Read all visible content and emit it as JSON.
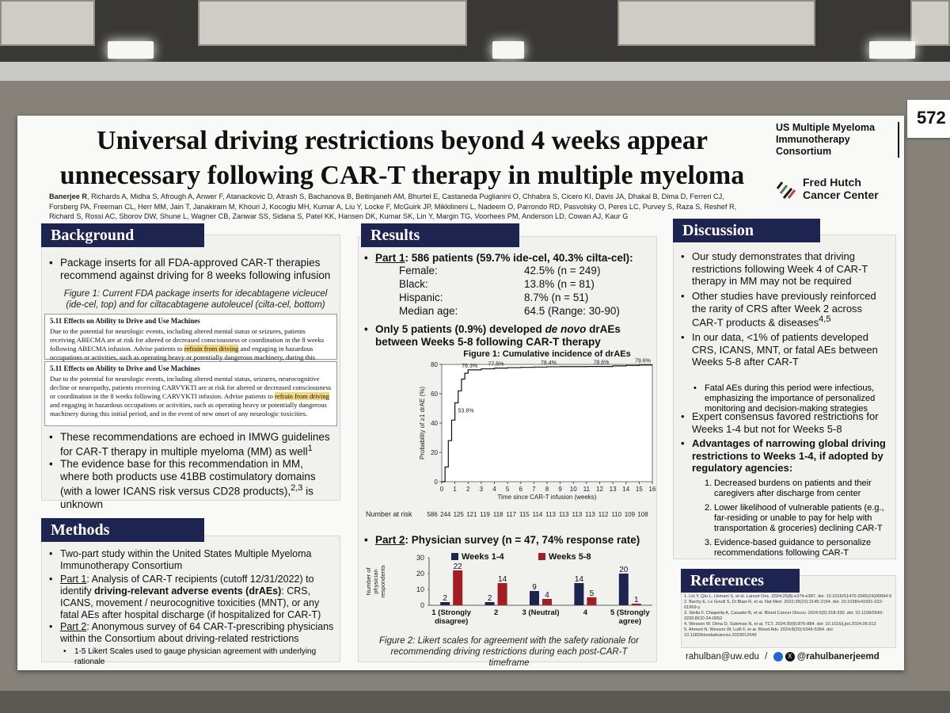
{
  "booth_number": "572",
  "title_line1": "Universal driving restrictions beyond 4 weeks appear",
  "title_line2": "unnecessary following CAR-T therapy in multiple myeloma",
  "authors_first": "Banerjee R",
  "authors_rest": ", Richards A, Midha S, Afrough A, Anwer F, Atanackovic D, Atrash S, Bachanova B, Beitinjaneh AM, Bhurtel E, Castaneda Puglianini O, Chhabra S, Cicero KI, Davis JA, Dhakal B, Dima D, Ferreri CJ, Forsberg PA, Freeman CL, Herr MM, Jain T, Janakiram M, Khouri J, Kocoglu MH, Kumar A, Liu Y, Locke F, McGuirk JP, Mikkilineni L, Nadeem O, Parrondo RD, Pasvolsky O, Peres LC, Purvey S, Raza S, Reshef R, Richard S, Rossi AC, Sborov DW, Shune L, Wagner CB, Zanwar SS, Sidana S, Patel KK, Hansen DK, Kumar SK, Lin Y, Margin TG, Voorhees PM, Anderson LD, Cowan AJ, Kaur G",
  "logos": {
    "consortium": [
      "US Multiple Myeloma",
      "Immunotherapy",
      "Consortium"
    ],
    "fred_hutch": [
      "Fred Hutch",
      "Cancer Center"
    ]
  },
  "background": {
    "header": "Background",
    "b1": "Package inserts for all FDA-approved CAR-T therapies recommend against driving for 8 weeks following infusion",
    "fig_caption": "Figure 1: Current FDA package inserts for idecabtagene vicleucel (ide-cel, top) and for ciltacabtagene autoleucel (cilta-cel, bottom)",
    "pkg1_heading": "5.11        Effects on Ability to Drive and Use Machines",
    "pkg1_text_a": "Due to the potential for neurologic events, including altered mental status or seizures, patients receiving ABECMA are at risk for altered or decreased consciousness or coordination in the 8 weeks following ABECMA infusion. Advise patients to ",
    "pkg1_highlight": "refrain from driving",
    "pkg1_text_b": " and engaging in hazardous occupations or activities, such as operating heavy or potentially dangerous machinery, during this initial period.",
    "pkg2_heading": "5.11  Effects on Ability to Drive and Use Machines",
    "pkg2_text_a": "Due to the potential for neurologic events, including altered mental status, seizures, neurocognitive decline or neuropathy, patients receiving CARVYKTI are at risk for altered or decreased consciousness or coordination in the 8 weeks following CARVYKTI infusion. Advise patients to ",
    "pkg2_highlight": "refrain from driving",
    "pkg2_text_b": " and engaging in hazardous occupations or activities, such as operating heavy or potentially dangerous machinery during this initial period, and in the event of new onset of any neurologic toxicities.",
    "b2": "These recommendations are echoed in IMWG guidelines for CAR-T therapy in multiple myeloma (MM) as well",
    "b2_sup": "1",
    "b3": "The evidence base for this recommendation in MM, where both products use 41BB costimulatory domains (with a lower ICANS risk versus CD28 products),",
    "b3_sup": "2,3",
    "b3_end": " is unknown"
  },
  "methods": {
    "header": "Methods",
    "b1": "Two-part study within the United States Multiple Myeloma Immunotherapy Consortium",
    "b2_label": "Part 1",
    "b2_text": ": Analysis of CAR-T recipients (cutoff 12/31/2022) to identify ",
    "b2_bold": "driving-relevant adverse events (drAEs)",
    "b2_end": ": CRS, ICANS, movement / neurocognitive toxicities (MNT), or any fatal AEs after hospital discharge (if hospitalized for CAR-T)",
    "b3_label": "Part 2",
    "b3_text": ": Anonymous survey of 64 CAR-T-prescribing physicians within the Consortium about driving-related restrictions",
    "b3_sub": "1-5 Likert Scales used to gauge physician agreement with underlying rationale"
  },
  "results": {
    "header": "Results",
    "part1_label": "Part 1",
    "part1_text": ": 586 patients (59.7% ide-cel, 40.3% cilta-cel):",
    "stats": [
      {
        "label": "Female:",
        "value": "42.5% (n = 249)"
      },
      {
        "label": "Black:",
        "value": "13.8% (n = 81)"
      },
      {
        "label": "Hispanic:",
        "value": "8.7% (n = 51)"
      },
      {
        "label": "Median age:",
        "value": "64.5 (Range: 30-90)"
      }
    ],
    "drae_a": "Only 5 patients (0.9%) developed ",
    "drae_italic": "de novo",
    "drae_b": " drAEs between Weeks 5-8 following CAR-T therapy",
    "part2_label": "Part 2",
    "part2_text": ": Physician survey (n = 47, 74% response rate)",
    "fig2_caption": "Figure 2: Likert scales for agreement with the safety rationale for recommending driving restrictions during each post-CAR-T timeframe"
  },
  "chart_data": [
    {
      "type": "line",
      "title": "Figure 1: Cumulative incidence of drAEs",
      "xlabel": "Time since CAR-T infusion (weeks)",
      "ylabel": "Probability of ≥1 drAE (%)",
      "xlim": [
        0,
        16
      ],
      "ylim": [
        0,
        80
      ],
      "x_ticks": [
        0,
        1,
        2,
        3,
        4,
        5,
        6,
        7,
        8,
        9,
        10,
        11,
        12,
        13,
        14,
        15,
        16
      ],
      "y_ticks": [
        0,
        20,
        40,
        60,
        80
      ],
      "x": [
        0,
        0.25,
        0.5,
        0.75,
        1.0,
        1.25,
        1.5,
        1.75,
        2.0,
        3,
        4,
        5,
        6,
        7,
        8,
        9,
        10,
        11,
        12,
        13,
        14,
        15,
        16
      ],
      "y": [
        0,
        10,
        28,
        42,
        53.8,
        62,
        70,
        74,
        76.3,
        77,
        77.5,
        77.8,
        78,
        78.2,
        78.4,
        78.5,
        78.5,
        78.6,
        78.6,
        79,
        79.3,
        79.6,
        79.6
      ],
      "annotations": [
        {
          "x": 1,
          "y": 53.8,
          "text": "53.8%"
        },
        {
          "x": 2,
          "y": 76.3,
          "text": "76.3%"
        },
        {
          "x": 4,
          "y": 77.5,
          "text": "77.5%"
        },
        {
          "x": 8,
          "y": 78.4,
          "text": "78.4%"
        },
        {
          "x": 12,
          "y": 78.6,
          "text": "78.6%"
        },
        {
          "x": 16,
          "y": 79.6,
          "text": "79.6%"
        }
      ],
      "risk_table_label": "Number at risk",
      "at_risk": [
        "586",
        "244",
        "125",
        "121",
        "119",
        "118",
        "117",
        "115",
        "114",
        "113",
        "113",
        "113",
        "113",
        "112",
        "110",
        "109",
        "108"
      ]
    },
    {
      "type": "bar",
      "ylabel": "Number of physician respondents",
      "ylim": [
        0,
        30
      ],
      "y_ticks": [
        0,
        10,
        20,
        30
      ],
      "categories": [
        [
          "1 (Strongly",
          "disagree)"
        ],
        [
          "2"
        ],
        [
          "3 (Neutral)"
        ],
        [
          "4"
        ],
        [
          "5 (Strongly",
          "agree)"
        ]
      ],
      "legend_placement": "top",
      "series": [
        {
          "name": "Weeks 1-4",
          "color": "#1d2450",
          "values": [
            2,
            2,
            9,
            14,
            20
          ]
        },
        {
          "name": "Weeks 5-8",
          "color": "#a31e22",
          "values": [
            22,
            14,
            4,
            5,
            1
          ]
        }
      ]
    }
  ],
  "discussion": {
    "header": "Discussion",
    "b1": "Our study demonstrates that driving restrictions following Week 4 of CAR-T therapy in MM may not be required",
    "b2": "Other studies have previously reinforced the rarity of CRS after Week 2 across CAR-T products & diseases",
    "b2_sup": "4,5",
    "b3": "In our data, <1% of patients developed CRS, ICANS, MNT, or fatal AEs between Weeks 5-8 after CAR-T",
    "b3_sub": "Fatal AEs during this period were infectious, emphasizing the importance of personalized monitoring and decision-making strategies",
    "b4": "Expert consensus favored restrictions for Weeks 1-4 but not for Weeks 5-8",
    "b5": "Advantages of narrowing global driving restrictions to Weeks 1-4, if adopted by regulatory agencies:",
    "n1": "Decreased burdens on patients and their caregivers after discharge from center",
    "n2": "Lower likelihood of vulnerable patients (e.g., far-residing or unable to pay for help with transportation & groceries) declining CAR-T",
    "n3": "Evidence-based guidance to personalize recommendations following CAR-T"
  },
  "references": {
    "header": "References",
    "items": [
      "1. Lin Y, Qiu L, Usmani S, et al. Lancet Onc. 2024;25(8):e374-e387. doi: 10.1016/S1470-2045(24)00094-9",
      "2. Bachy E, Le Gouill S, Di Blasi R, et al. Nat Med. 2022;28(10):2145-2154. doi: 10.1038/s41591-022-01969-y",
      "3. Stella F, Chiapella A, Casadei B, et al. Blood Cancer Discov. 2024;5(5):318-330. doi: 10.1158/2643-3230.BCD-24-0052",
      "4. Wesson W, Dima D, Suleman N, et al. TCT. 2024;30(9):876-884. doi: 10.1016/j.jtct.2024.06.012",
      "5. Ahmed N, Wesson W, Lutfi F, et al. Blood Adv. 2024;8(20):5346-5354. doi: 10.1182/bloodadvances.2023012549"
    ]
  },
  "contact": {
    "email": "rahulban@uw.edu",
    "separator": "/",
    "handle": "@rahulbanerjeemd"
  }
}
